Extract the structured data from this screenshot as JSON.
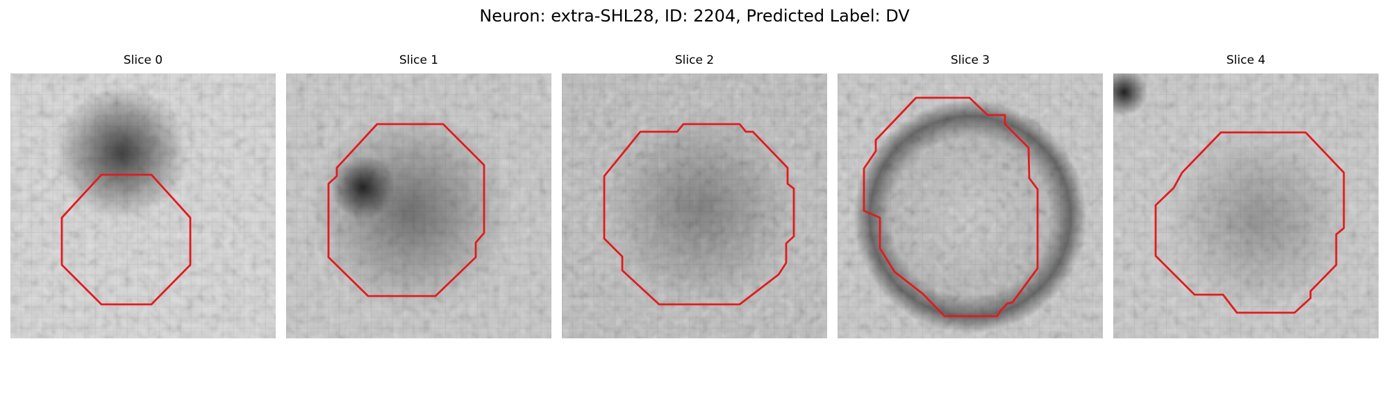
{
  "figure": {
    "title": "Neuron: extra-SHL28, ID: 2204, Predicted Label: DV"
  },
  "panels": [
    {
      "title": "Slice 0"
    },
    {
      "title": "Slice 1"
    },
    {
      "title": "Slice 2"
    },
    {
      "title": "Slice 3"
    },
    {
      "title": "Slice 4"
    }
  ],
  "colors": {
    "contour": "#e31a1c",
    "background": "#ffffff"
  }
}
